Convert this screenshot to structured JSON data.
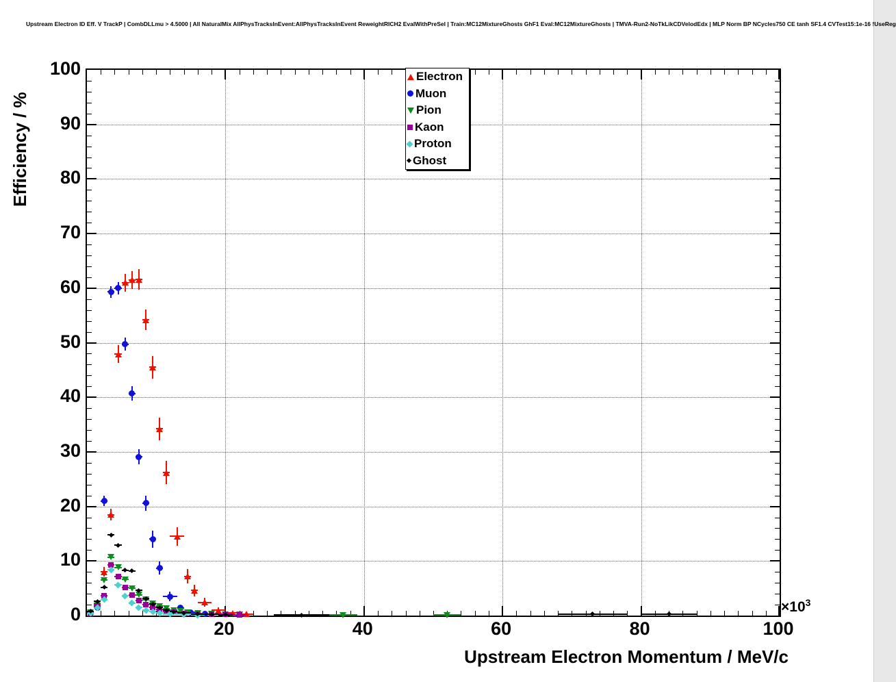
{
  "title": "Upstream Electron ID Eff. V TrackP | CombDLLmu > 4.5000 | All NaturalMix AllPhysTracksInEvent:AllPhysTracksInEvent ReweightRICH2 EvalWithPreSel | Train:MC12MixtureGhosts GhF1 Eval:MC12MixtureGhosts | TMVA-Run2-NoTkLikCDVelodEdx | MLP Norm BP NCycles750 CE tanh SF1.4 CVTest15:1e-16 !UseReg",
  "chart_data": {
    "type": "scatter",
    "title": "Upstream Electron ID Eff. V TrackP | CombDLLmu > 4.5000 | All NaturalMix AllPhysTracksInEvent:AllPhysTracksInEvent ReweightRICH2 EvalWithPreSel | Train:MC12MixtureGhosts GhF1 Eval:MC12MixtureGhosts | TMVA-Run2-NoTkLikCDVelodEdx | MLP Norm BP NCycles750 CE tanh SF1.4 CVTest15:1e-16 !UseReg",
    "xlabel": "Upstream Electron Momentum / MeV/c",
    "ylabel": "Efficiency / %",
    "x_axis_multiplier": {
      "base": "×10",
      "exponent": "3"
    },
    "xlim": [
      0,
      100
    ],
    "ylim": [
      0,
      100
    ],
    "x_major_ticks": [
      20,
      40,
      60,
      80,
      100
    ],
    "y_major_ticks": [
      0,
      10,
      20,
      30,
      40,
      50,
      60,
      70,
      80,
      90,
      100
    ],
    "minor_tick_step": 2,
    "grid": true,
    "legend_position": "top-center",
    "x_units_note": "x values in units of 10^3 MeV/c",
    "series": [
      {
        "name": "Electron",
        "color": "#ee1100",
        "marker": "triangle-up",
        "points": [
          [
            0.5,
            0.5,
            0.3
          ],
          [
            1.5,
            2.0,
            0.5
          ],
          [
            2.5,
            8.0,
            0.9
          ],
          [
            3.5,
            18.5,
            1.1
          ],
          [
            4.5,
            47.9,
            1.6
          ],
          [
            5.5,
            61.0,
            1.6
          ],
          [
            6.5,
            61.5,
            1.6
          ],
          [
            7.5,
            61.6,
            1.9
          ],
          [
            8.5,
            54.2,
            1.9
          ],
          [
            9.5,
            45.5,
            2.1
          ],
          [
            10.5,
            34.2,
            2.1
          ],
          [
            11.5,
            26.2,
            2.1
          ],
          [
            13.0,
            14.5,
            1.7,
            1.0
          ],
          [
            14.5,
            7.2,
            1.3,
            0.5
          ],
          [
            15.5,
            4.6,
            1.1,
            0.5
          ],
          [
            17.0,
            2.4,
            0.8,
            1.0
          ],
          [
            19.0,
            1.0,
            0.5,
            1.0
          ],
          [
            21.0,
            0.5,
            0.3,
            1.0
          ],
          [
            23.0,
            0.3,
            0.2,
            1.0
          ]
        ]
      },
      {
        "name": "Muon",
        "color": "#1111dd",
        "marker": "circle",
        "points": [
          [
            0.5,
            0.4,
            0.2
          ],
          [
            1.5,
            1.5,
            0.4
          ],
          [
            2.5,
            21.0,
            0.9
          ],
          [
            3.5,
            59.3,
            1.1
          ],
          [
            4.5,
            60.0,
            1.1
          ],
          [
            5.5,
            49.7,
            1.2
          ],
          [
            6.5,
            40.7,
            1.3
          ],
          [
            7.5,
            29.1,
            1.4
          ],
          [
            8.5,
            20.6,
            1.4
          ],
          [
            9.5,
            14.0,
            1.6
          ],
          [
            10.5,
            8.7,
            1.2
          ],
          [
            12.0,
            3.5,
            0.9,
            1.0
          ],
          [
            13.5,
            1.4,
            0.5,
            0.5
          ],
          [
            15.0,
            0.6,
            0.3,
            1.0
          ],
          [
            17.0,
            0.3,
            0.2,
            1.0
          ]
        ]
      },
      {
        "name": "Pion",
        "color": "#0d8f1d",
        "marker": "triangle-down",
        "points": [
          [
            0.5,
            0.6,
            0.1
          ],
          [
            1.5,
            2.2,
            0.2
          ],
          [
            2.5,
            6.5,
            0.3
          ],
          [
            3.5,
            10.7,
            0.4
          ],
          [
            4.5,
            8.8,
            0.3
          ],
          [
            5.5,
            6.6,
            0.3
          ],
          [
            6.5,
            5.0,
            0.2
          ],
          [
            7.5,
            3.8,
            0.2
          ],
          [
            8.5,
            2.9,
            0.2
          ],
          [
            9.5,
            2.2,
            0.15
          ],
          [
            10.5,
            1.7,
            0.12
          ],
          [
            11.5,
            1.3,
            0.1
          ],
          [
            12.5,
            1.0,
            0.1
          ],
          [
            13.5,
            0.8,
            0.1
          ],
          [
            14.5,
            0.6,
            0.08
          ],
          [
            16.0,
            0.4,
            0.07,
            1.0
          ],
          [
            18.0,
            0.3,
            0.06,
            1.0
          ],
          [
            20.0,
            0.2,
            0.05,
            1.0
          ],
          [
            22.0,
            0.15,
            0.05,
            1.0
          ],
          [
            37.0,
            0.07,
            0.05,
            2.0
          ],
          [
            52.0,
            0.07,
            0.05,
            2.0
          ]
        ]
      },
      {
        "name": "Kaon",
        "color": "#990099",
        "marker": "square",
        "points": [
          [
            0.5,
            0.5,
            0.15
          ],
          [
            1.5,
            1.8,
            0.25
          ],
          [
            2.5,
            3.6,
            0.3
          ],
          [
            3.5,
            9.3,
            0.4
          ],
          [
            4.5,
            7.2,
            0.35
          ],
          [
            5.5,
            5.2,
            0.3
          ],
          [
            6.5,
            3.8,
            0.25
          ],
          [
            7.5,
            2.8,
            0.2
          ],
          [
            8.5,
            2.0,
            0.18
          ],
          [
            9.5,
            1.5,
            0.15
          ],
          [
            10.5,
            1.1,
            0.12
          ],
          [
            11.5,
            0.8,
            0.1
          ],
          [
            12.5,
            0.6,
            0.1
          ],
          [
            14.0,
            0.4,
            0.08,
            1.0
          ],
          [
            16.0,
            0.3,
            0.07,
            1.0
          ],
          [
            18.0,
            0.25,
            0.06,
            1.0
          ],
          [
            20.0,
            0.2,
            0.05,
            1.0
          ],
          [
            22.0,
            0.15,
            0.05,
            1.0
          ]
        ]
      },
      {
        "name": "Proton",
        "color": "#4fd0d0",
        "marker": "diamond",
        "points": [
          [
            0.5,
            0.4,
            0.15
          ],
          [
            1.5,
            1.4,
            0.25
          ],
          [
            2.5,
            2.9,
            0.3
          ],
          [
            3.5,
            8.4,
            0.45
          ],
          [
            4.5,
            5.6,
            0.4
          ],
          [
            5.5,
            3.6,
            0.3
          ],
          [
            6.5,
            2.3,
            0.25
          ],
          [
            7.5,
            1.5,
            0.2
          ],
          [
            8.5,
            1.0,
            0.15
          ],
          [
            9.5,
            0.7,
            0.12
          ],
          [
            10.5,
            0.5,
            0.1
          ],
          [
            12.0,
            0.3,
            0.08,
            1.0
          ],
          [
            14.0,
            0.2,
            0.06,
            1.0
          ],
          [
            16.0,
            0.12,
            0.05,
            1.0
          ]
        ]
      },
      {
        "name": "Ghost",
        "color": "#000000",
        "marker": "dot",
        "points": [
          [
            0.5,
            0.8,
            0.1
          ],
          [
            1.5,
            2.6,
            0.15
          ],
          [
            2.5,
            5.2,
            0.2
          ],
          [
            3.5,
            14.8,
            0.3
          ],
          [
            4.5,
            12.9,
            0.3
          ],
          [
            5.5,
            8.3,
            0.25
          ],
          [
            6.5,
            8.2,
            0.25
          ],
          [
            7.5,
            4.6,
            0.2
          ],
          [
            8.5,
            3.1,
            0.15
          ],
          [
            9.5,
            2.1,
            0.12
          ],
          [
            10.5,
            1.5,
            0.1
          ],
          [
            11.5,
            1.0,
            0.09
          ],
          [
            12.5,
            0.7,
            0.08
          ],
          [
            14.0,
            0.5,
            0.07,
            1.0
          ],
          [
            16.0,
            0.3,
            0.06,
            1.0
          ],
          [
            18.0,
            0.2,
            0.05,
            1.0
          ],
          [
            20.0,
            0.15,
            0.05,
            1.0
          ],
          [
            31.0,
            0.1,
            0.06,
            4.0
          ],
          [
            73.0,
            0.3,
            0.15,
            5.0
          ],
          [
            84.0,
            0.3,
            0.15,
            4.0
          ]
        ]
      }
    ]
  }
}
